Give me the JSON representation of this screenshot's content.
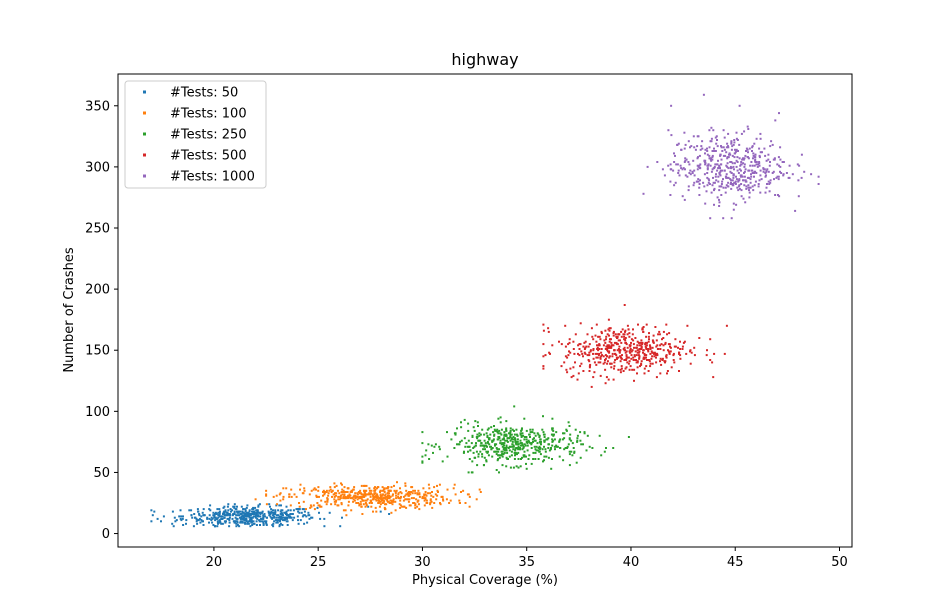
{
  "chart_data": {
    "type": "scatter",
    "title": "highway",
    "xlabel": "Physical Coverage  (%)",
    "ylabel": "Number of Crashes",
    "xlim": [
      15.4,
      50.6
    ],
    "ylim": [
      -11,
      376
    ],
    "x_ticks": [
      20,
      25,
      30,
      35,
      40,
      45,
      50
    ],
    "y_ticks": [
      0,
      50,
      100,
      150,
      200,
      250,
      300,
      350
    ],
    "grid": false,
    "legend_position": "top-left",
    "series": [
      {
        "name": "#Tests: 50",
        "color": "#1f77b4",
        "cluster": {
          "x_center": 21.7,
          "x_spread": 1.6,
          "y_center": 14,
          "y_spread": 4,
          "count": 500,
          "x_min": 17.0,
          "x_max": 28.4,
          "y_min": 6,
          "y_max": 24
        },
        "outliers": [
          [
            17.0,
            10
          ],
          [
            17.3,
            12
          ],
          [
            17.6,
            14
          ],
          [
            18.0,
            8
          ],
          [
            27.4,
            22
          ],
          [
            28.4,
            16
          ],
          [
            28.0,
            18
          ]
        ]
      },
      {
        "name": "#Tests: 100",
        "color": "#ff7f0e",
        "cluster": {
          "x_center": 27.5,
          "x_spread": 2.0,
          "y_center": 30,
          "y_spread": 5,
          "count": 500,
          "x_min": 22.5,
          "x_max": 32.8,
          "y_min": 15,
          "y_max": 44
        },
        "outliers": [
          [
            22.0,
            28
          ],
          [
            23.2,
            33
          ],
          [
            32.6,
            28
          ],
          [
            31.5,
            37
          ]
        ]
      },
      {
        "name": "#Tests: 250",
        "color": "#2ca02c",
        "cluster": {
          "x_center": 34.4,
          "x_spread": 1.6,
          "y_center": 73,
          "y_spread": 8,
          "count": 500,
          "x_min": 30.0,
          "x_max": 40.0,
          "y_min": 50,
          "y_max": 104
        },
        "outliers": [
          [
            30.0,
            58
          ],
          [
            30.0,
            63
          ],
          [
            39.9,
            79
          ],
          [
            38.5,
            80
          ],
          [
            32.4,
            50
          ],
          [
            34.4,
            104
          ]
        ]
      },
      {
        "name": "#Tests: 500",
        "color": "#d62728",
        "cluster": {
          "x_center": 39.7,
          "x_spread": 1.5,
          "y_center": 150,
          "y_spread": 10,
          "count": 500,
          "x_min": 35.8,
          "x_max": 45.0,
          "y_min": 120,
          "y_max": 186
        },
        "outliers": [
          [
            35.8,
            145
          ],
          [
            35.9,
            146
          ],
          [
            44.6,
            170
          ],
          [
            44.5,
            147
          ],
          [
            39.7,
            187
          ],
          [
            43.8,
            159
          ]
        ]
      },
      {
        "name": "#Tests: 1000",
        "color": "#9467bd",
        "cluster": {
          "x_center": 44.7,
          "x_spread": 1.4,
          "y_center": 300,
          "y_spread": 14,
          "count": 500,
          "x_min": 40.5,
          "x_max": 49.0,
          "y_min": 258,
          "y_max": 358
        },
        "outliers": [
          [
            40.6,
            278
          ],
          [
            40.8,
            300
          ],
          [
            49.0,
            292
          ],
          [
            48.0,
            302
          ],
          [
            47.1,
            344
          ],
          [
            43.5,
            359
          ],
          [
            43.8,
            258
          ]
        ]
      }
    ]
  }
}
